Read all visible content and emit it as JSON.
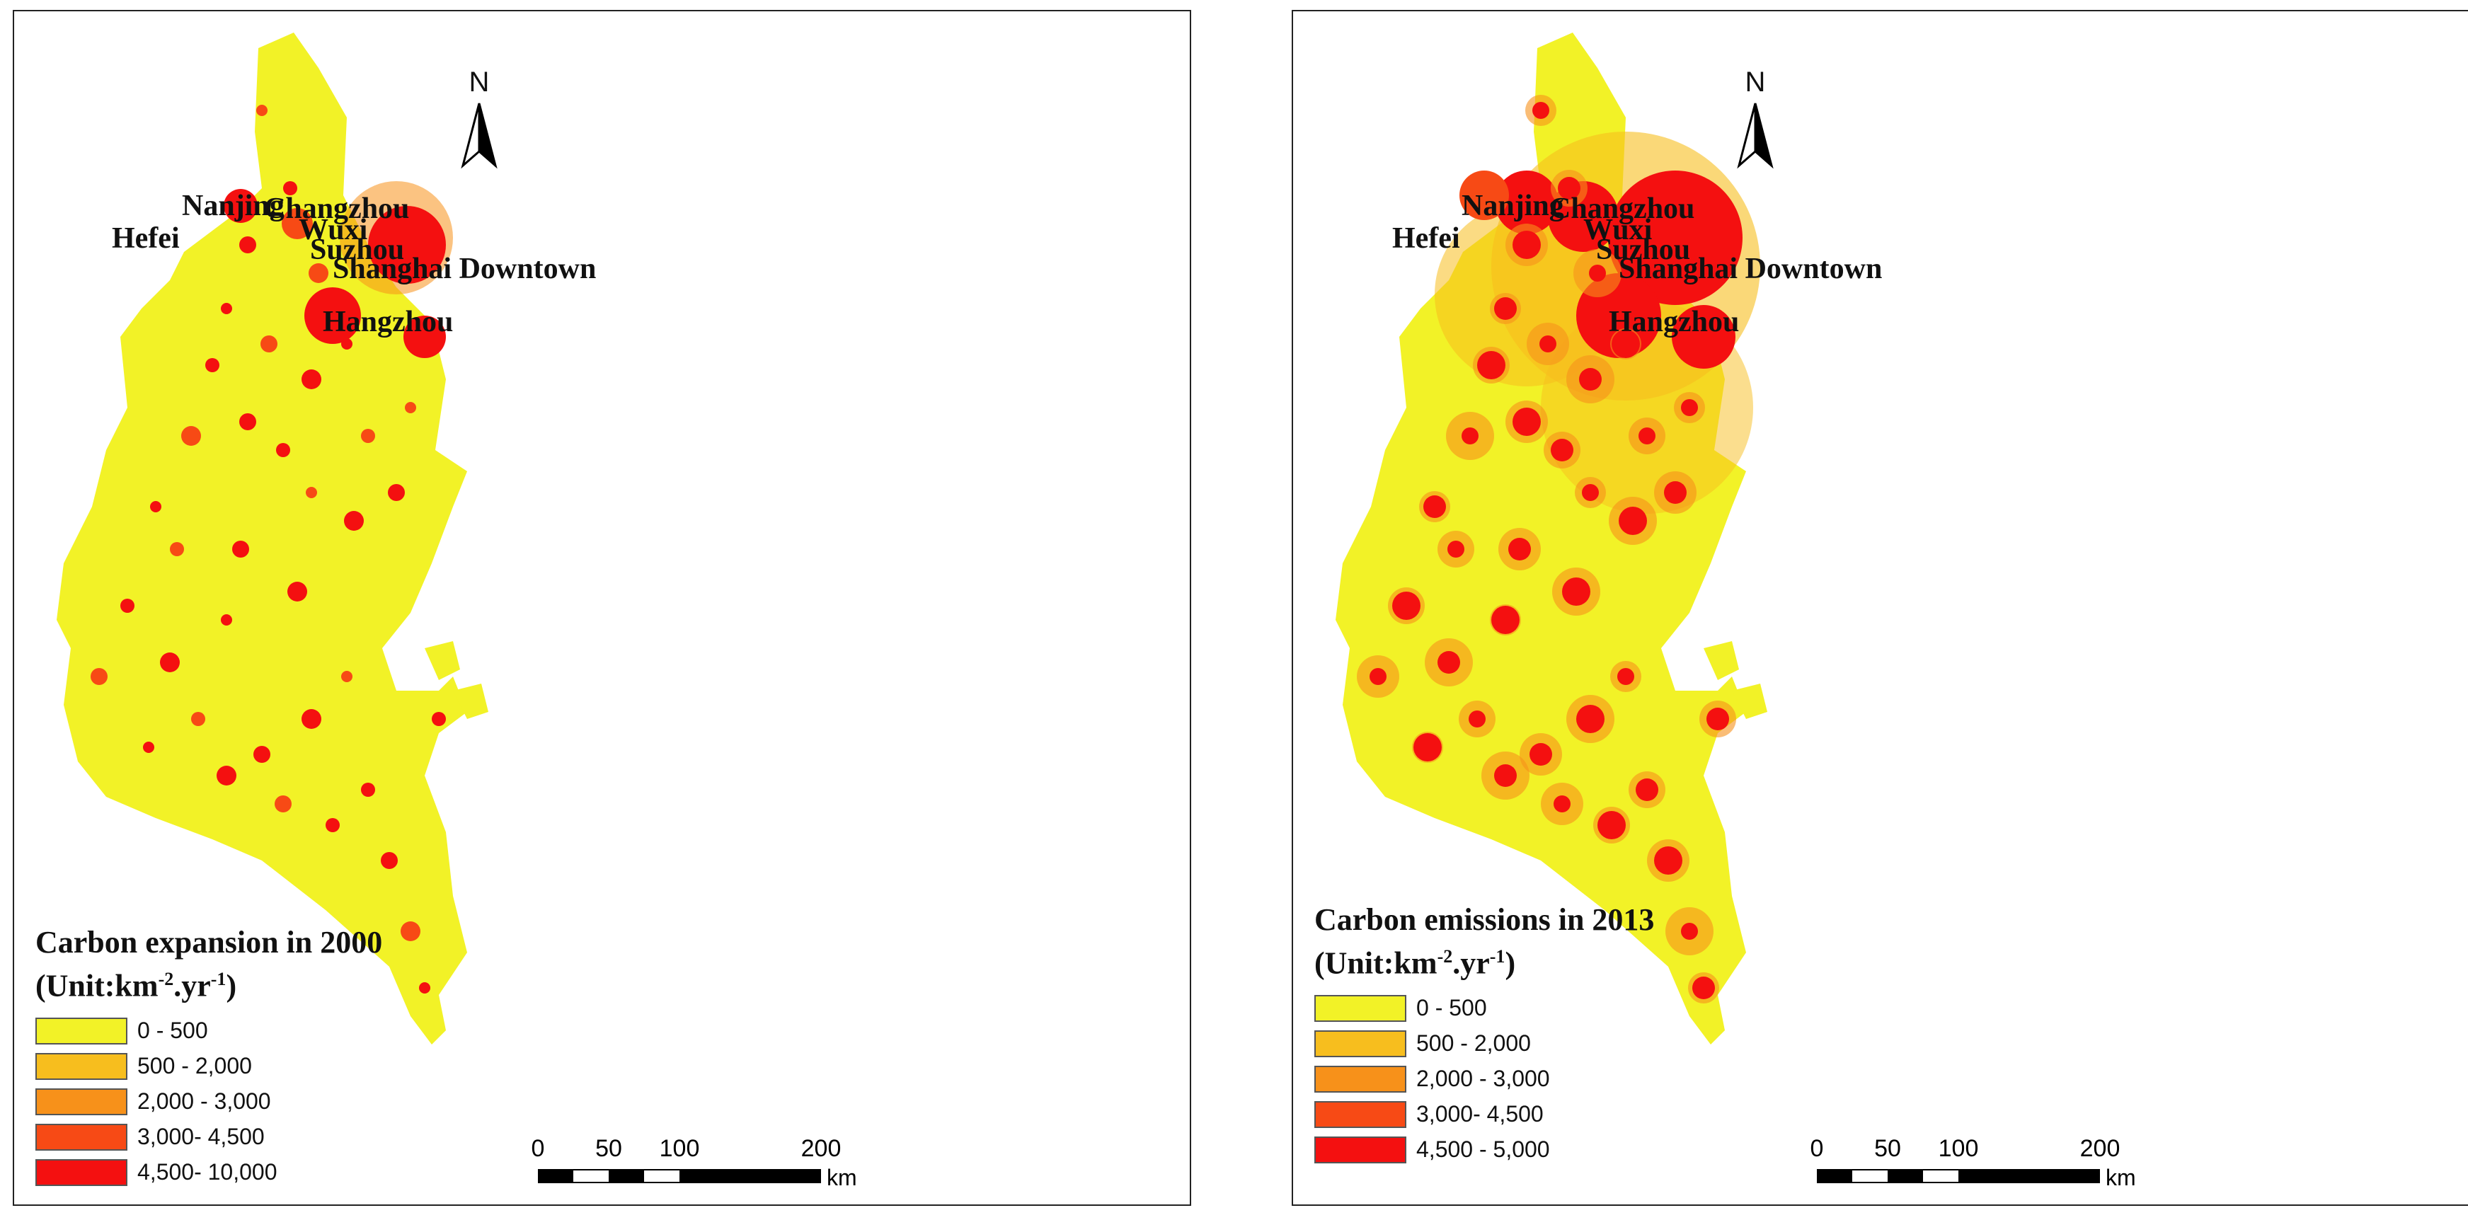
{
  "north_label": "N",
  "class_colors": [
    "#f2f227",
    "#f7be1e",
    "#f7911a",
    "#f74a15",
    "#f41010"
  ],
  "left_panel": {
    "title": "Carbon expansion in 2000",
    "unit_prefix": "(Unit:km",
    "unit_exp1": "-2",
    "unit_mid": ".yr",
    "unit_exp2": "-1",
    "unit_suffix": ")",
    "legend": [
      "0 - 500",
      "500 - 2,000",
      "2,000 - 3,000",
      "3,000- 4,500",
      "4,500- 10,000"
    ],
    "cities": {
      "hefei": "Hefei",
      "nanjing": "Nanjing",
      "changzhou": "Changzhou",
      "wuxi": "Wuxi",
      "suzhou": "Suzhou",
      "shanghai": "Shanghai Downtown",
      "hangzhou": "Hangzhou"
    },
    "scale": {
      "ticks": [
        "0",
        "50",
        "100",
        "200"
      ],
      "unit": "km"
    }
  },
  "right_panel": {
    "title": "Carbon emissions in 2013",
    "unit_prefix": "(Unit:km",
    "unit_exp1": "-2",
    "unit_mid": ".yr",
    "unit_exp2": "-1",
    "unit_suffix": ")",
    "legend": [
      "0 - 500",
      "500 - 2,000",
      "2,000 - 3,000",
      "3,000- 4,500",
      "4,500 - 5,000"
    ],
    "cities": {
      "hefei": "Hefei",
      "nanjing": "Nanjing",
      "changzhou": "Changzhou",
      "wuxi": "Wuxi",
      "suzhou": "Suzhou",
      "shanghai": "Shanghai Downtown",
      "hangzhou": "Hangzhou"
    },
    "scale": {
      "ticks": [
        "0",
        "50",
        "100",
        "200"
      ],
      "unit": "km"
    }
  }
}
